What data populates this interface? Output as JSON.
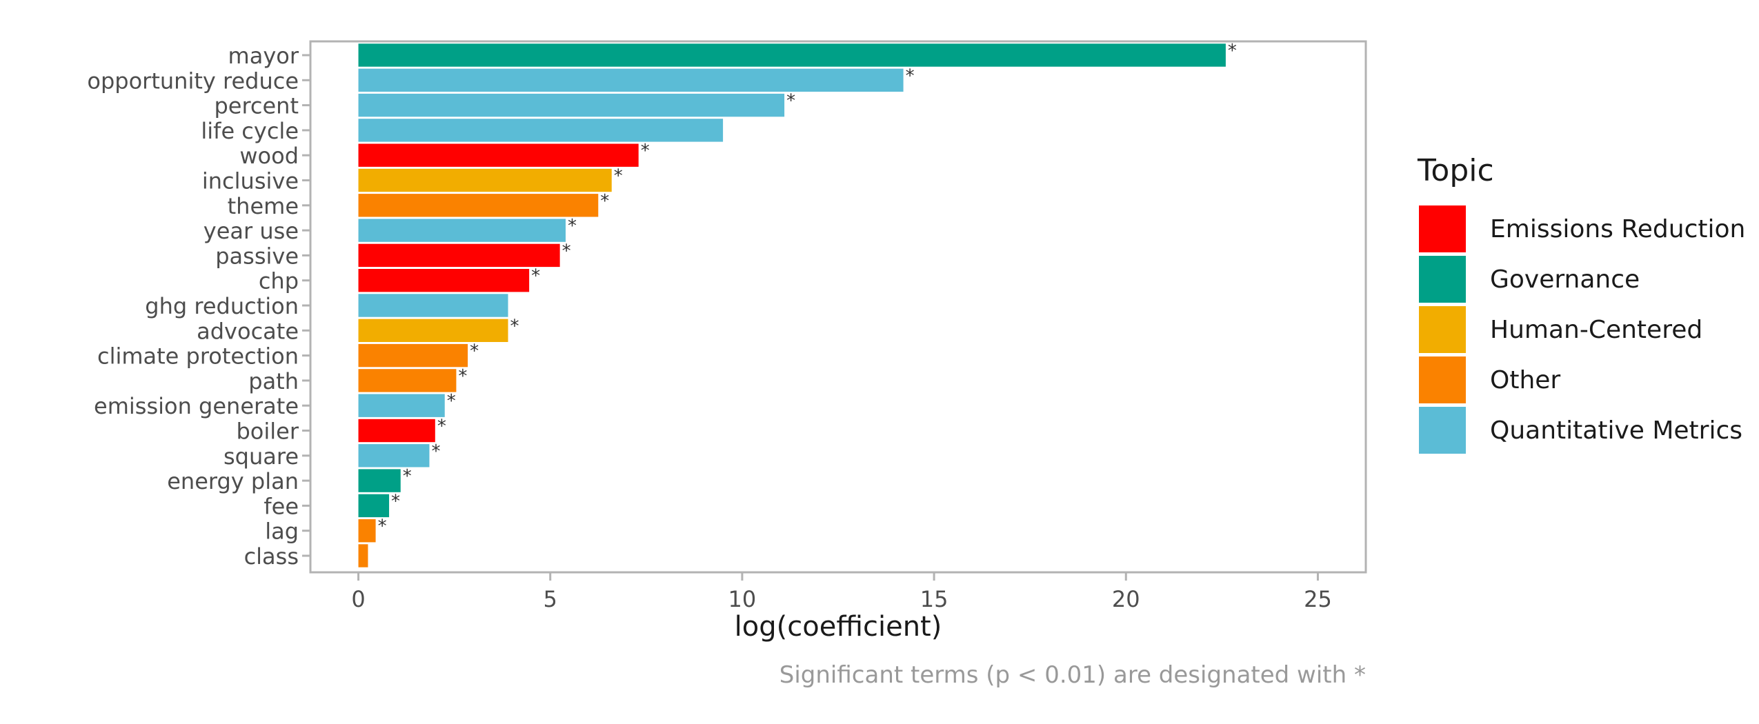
{
  "chart_data": {
    "type": "bar",
    "orientation": "horizontal",
    "xlabel": "log(coefficient)",
    "ylabel": "",
    "xlim": [
      -1.25,
      26.25
    ],
    "xticks": [
      0,
      5,
      10,
      15,
      20,
      25
    ],
    "caption": "Significant terms (p < 0.01) are designated with *",
    "significance_marker": "*",
    "grid": false,
    "legend": {
      "title": "Topic",
      "position": "right",
      "items": [
        {
          "name": "Emissions Reduction",
          "color": "#ff0000"
        },
        {
          "name": "Governance",
          "color": "#00a087"
        },
        {
          "name": "Human-Centered",
          "color": "#f2ad00"
        },
        {
          "name": "Other",
          "color": "#fa8200"
        },
        {
          "name": "Quantitative Metrics",
          "color": "#5bbcd6"
        }
      ]
    },
    "bars": [
      {
        "term": "mayor",
        "value": 22.6,
        "topic": "Governance",
        "significant": true
      },
      {
        "term": "opportunity reduce",
        "value": 14.2,
        "topic": "Quantitative Metrics",
        "significant": true
      },
      {
        "term": "percent",
        "value": 11.1,
        "topic": "Quantitative Metrics",
        "significant": true
      },
      {
        "term": "life cycle",
        "value": 9.5,
        "topic": "Quantitative Metrics",
        "significant": false
      },
      {
        "term": "wood",
        "value": 7.3,
        "topic": "Emissions Reduction",
        "significant": true
      },
      {
        "term": "inclusive",
        "value": 6.6,
        "topic": "Human-Centered",
        "significant": true
      },
      {
        "term": "theme",
        "value": 6.25,
        "topic": "Other",
        "significant": true
      },
      {
        "term": "year use",
        "value": 5.4,
        "topic": "Quantitative Metrics",
        "significant": true
      },
      {
        "term": "passive",
        "value": 5.25,
        "topic": "Emissions Reduction",
        "significant": true
      },
      {
        "term": "chp",
        "value": 4.45,
        "topic": "Emissions Reduction",
        "significant": true
      },
      {
        "term": "ghg reduction",
        "value": 3.9,
        "topic": "Quantitative Metrics",
        "significant": false
      },
      {
        "term": "advocate",
        "value": 3.9,
        "topic": "Human-Centered",
        "significant": true
      },
      {
        "term": "climate protection",
        "value": 2.85,
        "topic": "Other",
        "significant": true
      },
      {
        "term": "path",
        "value": 2.55,
        "topic": "Other",
        "significant": true
      },
      {
        "term": "emission generate",
        "value": 2.25,
        "topic": "Quantitative Metrics",
        "significant": true
      },
      {
        "term": "boiler",
        "value": 2.0,
        "topic": "Emissions Reduction",
        "significant": true
      },
      {
        "term": "square",
        "value": 1.85,
        "topic": "Quantitative Metrics",
        "significant": true
      },
      {
        "term": "energy plan",
        "value": 1.1,
        "topic": "Governance",
        "significant": true
      },
      {
        "term": "fee",
        "value": 0.8,
        "topic": "Governance",
        "significant": true
      },
      {
        "term": "lag",
        "value": 0.45,
        "topic": "Other",
        "significant": true
      },
      {
        "term": "class",
        "value": 0.25,
        "topic": "Other",
        "significant": false
      }
    ]
  }
}
